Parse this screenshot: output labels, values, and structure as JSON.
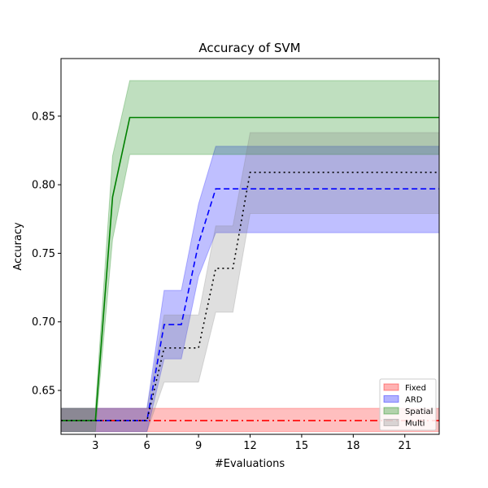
{
  "chart_data": {
    "type": "line",
    "title": "Accuracy of SVM",
    "xlabel": "#Evaluations",
    "ylabel": "Accuracy",
    "xlim": [
      1,
      23
    ],
    "ylim": [
      0.618,
      0.892
    ],
    "xticks": [
      3,
      6,
      9,
      12,
      15,
      18,
      21
    ],
    "yticks": [
      0.65,
      0.7,
      0.75,
      0.8,
      0.85
    ],
    "grid": false,
    "legend_position": "lower-right",
    "series": [
      {
        "name": "Fixed",
        "color": "#ff0000",
        "band_color": "#ff0000",
        "linestyle": "dashdot",
        "x": [
          1,
          23
        ],
        "y": [
          0.628,
          0.628
        ],
        "lower": [
          0.62,
          0.62
        ],
        "upper": [
          0.637,
          0.637
        ]
      },
      {
        "name": "ARD",
        "color": "#0000ff",
        "band_color": "#0000ff",
        "linestyle": "dashed",
        "x": [
          1,
          2,
          3,
          4,
          5,
          6,
          7,
          8,
          9,
          10,
          11,
          12,
          13,
          14,
          15,
          16,
          17,
          18,
          19,
          20,
          21,
          22,
          23
        ],
        "y": [
          0.628,
          0.628,
          0.628,
          0.628,
          0.628,
          0.628,
          0.698,
          0.698,
          0.757,
          0.797,
          0.797,
          0.797,
          0.797,
          0.797,
          0.797,
          0.797,
          0.797,
          0.797,
          0.797,
          0.797,
          0.797,
          0.797,
          0.797
        ],
        "lower": [
          0.62,
          0.62,
          0.62,
          0.62,
          0.62,
          0.62,
          0.673,
          0.673,
          0.733,
          0.765,
          0.765,
          0.765,
          0.765,
          0.765,
          0.765,
          0.765,
          0.765,
          0.765,
          0.765,
          0.765,
          0.765,
          0.765,
          0.765
        ],
        "upper": [
          0.637,
          0.637,
          0.637,
          0.637,
          0.637,
          0.637,
          0.723,
          0.723,
          0.786,
          0.828,
          0.828,
          0.828,
          0.828,
          0.828,
          0.828,
          0.828,
          0.828,
          0.828,
          0.828,
          0.828,
          0.828,
          0.828,
          0.828
        ]
      },
      {
        "name": "Spatial",
        "color": "#008000",
        "band_color": "#008000",
        "linestyle": "solid",
        "x": [
          1,
          2,
          3,
          4,
          5,
          6,
          7,
          8,
          9,
          10,
          11,
          12,
          13,
          14,
          15,
          16,
          17,
          18,
          19,
          20,
          21,
          22,
          23
        ],
        "y": [
          0.628,
          0.628,
          0.628,
          0.791,
          0.849,
          0.849,
          0.849,
          0.849,
          0.849,
          0.849,
          0.849,
          0.849,
          0.849,
          0.849,
          0.849,
          0.849,
          0.849,
          0.849,
          0.849,
          0.849,
          0.849,
          0.849,
          0.849
        ],
        "lower": [
          0.62,
          0.62,
          0.62,
          0.76,
          0.822,
          0.822,
          0.822,
          0.822,
          0.822,
          0.822,
          0.822,
          0.822,
          0.822,
          0.822,
          0.822,
          0.822,
          0.822,
          0.822,
          0.822,
          0.822,
          0.822,
          0.822,
          0.822
        ],
        "upper": [
          0.637,
          0.637,
          0.637,
          0.821,
          0.876,
          0.876,
          0.876,
          0.876,
          0.876,
          0.876,
          0.876,
          0.876,
          0.876,
          0.876,
          0.876,
          0.876,
          0.876,
          0.876,
          0.876,
          0.876,
          0.876,
          0.876,
          0.876
        ]
      },
      {
        "name": "Multi",
        "color": "#000000",
        "band_color": "#808080",
        "linestyle": "dotted",
        "x": [
          1,
          2,
          3,
          4,
          5,
          6,
          7,
          8,
          9,
          10,
          11,
          12,
          13,
          14,
          15,
          16,
          17,
          18,
          19,
          20,
          21,
          22,
          23
        ],
        "y": [
          0.628,
          0.628,
          0.628,
          0.628,
          0.628,
          0.628,
          0.681,
          0.681,
          0.681,
          0.739,
          0.739,
          0.809,
          0.809,
          0.809,
          0.809,
          0.809,
          0.809,
          0.809,
          0.809,
          0.809,
          0.809,
          0.809,
          0.809
        ],
        "lower": [
          0.62,
          0.62,
          0.62,
          0.62,
          0.62,
          0.62,
          0.656,
          0.656,
          0.656,
          0.707,
          0.707,
          0.779,
          0.779,
          0.779,
          0.779,
          0.779,
          0.779,
          0.779,
          0.779,
          0.779,
          0.779,
          0.779,
          0.779
        ],
        "upper": [
          0.637,
          0.637,
          0.637,
          0.637,
          0.637,
          0.637,
          0.705,
          0.705,
          0.705,
          0.77,
          0.77,
          0.838,
          0.838,
          0.838,
          0.838,
          0.838,
          0.838,
          0.838,
          0.838,
          0.838,
          0.838,
          0.838,
          0.838
        ]
      }
    ]
  }
}
